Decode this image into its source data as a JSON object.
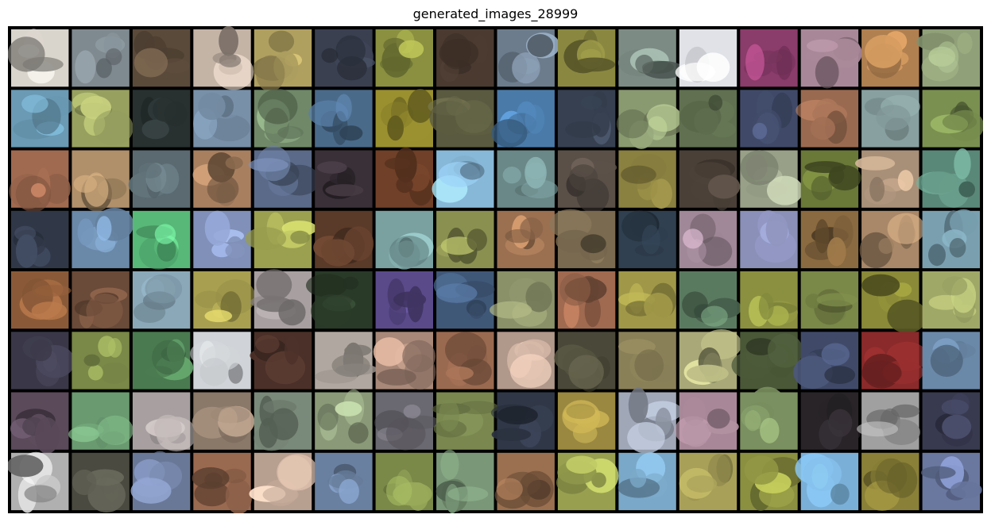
{
  "title": "generated_images_28999",
  "grid": {
    "rows": 8,
    "cols": 16,
    "border_color": "#000000",
    "tiles": [
      [
        "#d9d4cc",
        "#7f8a90",
        "#5a4a3a",
        "#c4b4a6",
        "#b0a060",
        "#3a4050",
        "#8a9040",
        "#4a3a30",
        "#6c7c8c",
        "#8a8840",
        "#7c8c84",
        "#e0e2e8",
        "#8a3c6a",
        "#a88898",
        "#b08050",
        "#90a078"
      ],
      [
        "#6a9ab4",
        "#98a060",
        "#283030",
        "#7890a8",
        "#708868",
        "#4a6a8a",
        "#9a9030",
        "#5a5a40",
        "#4a7aa8",
        "#364050",
        "#8a9a70",
        "#607050",
        "#404a68",
        "#9a6a50",
        "#88a0a0",
        "#7a9050"
      ],
      [
        "#a06a50",
        "#b0906a",
        "#5a6a70",
        "#a88060",
        "#5a6a88",
        "#3a3038",
        "#704028",
        "#88b8d8",
        "#6a8888",
        "#5a5048",
        "#8a8040",
        "#4a4038",
        "#98a088",
        "#6a7838",
        "#a89078",
        "#5a8878"
      ],
      [
        "#303848",
        "#6a88a8",
        "#58b878",
        "#8090b8",
        "#9aa050",
        "#5a3a28",
        "#7aa0a0",
        "#8a9050",
        "#9a7050",
        "#7a6a50",
        "#304050",
        "#a08898",
        "#8a90b8",
        "#8a6a40",
        "#a88868",
        "#7aa0b0"
      ],
      [
        "#8a5a38",
        "#6a4a38",
        "#8aa8b8",
        "#a8a050",
        "#a8a0a0",
        "#2a3a28",
        "#5a4a8a",
        "#405878",
        "#8a9068",
        "#a06a50",
        "#a09848",
        "#5a7a60",
        "#8a9040",
        "#7a8848",
        "#8a8a38",
        "#a0a868"
      ],
      [
        "#3a3848",
        "#7a8848",
        "#4a7a50",
        "#d0d4d8",
        "#4a3028",
        "#b0a8a0",
        "#a88878",
        "#9a6a50",
        "#b0988a",
        "#4a4838",
        "#8a8058",
        "#a8a878",
        "#4a5838",
        "#404a68",
        "#8a2a2a",
        "#6a88a8"
      ],
      [
        "#5a4a5a",
        "#6a9a70",
        "#a8a0a0",
        "#8a7868",
        "#7a8a7a",
        "#8a9a78",
        "#6a6870",
        "#7a8850",
        "#303848",
        "#9a8840",
        "#a0a8b8",
        "#a88898",
        "#7a9060",
        "#282428",
        "#a0a0a0",
        "#383a50"
      ],
      [
        "#b0b0b0",
        "#4a4a40",
        "#6a7898",
        "#9a6a50",
        "#b8a090",
        "#6a80a0",
        "#7a8848",
        "#7a9878",
        "#9a7050",
        "#98a050",
        "#7aa8c8",
        "#a8a058",
        "#8a9040",
        "#7ab0d8",
        "#8a8038",
        "#6a78a0"
      ]
    ]
  }
}
